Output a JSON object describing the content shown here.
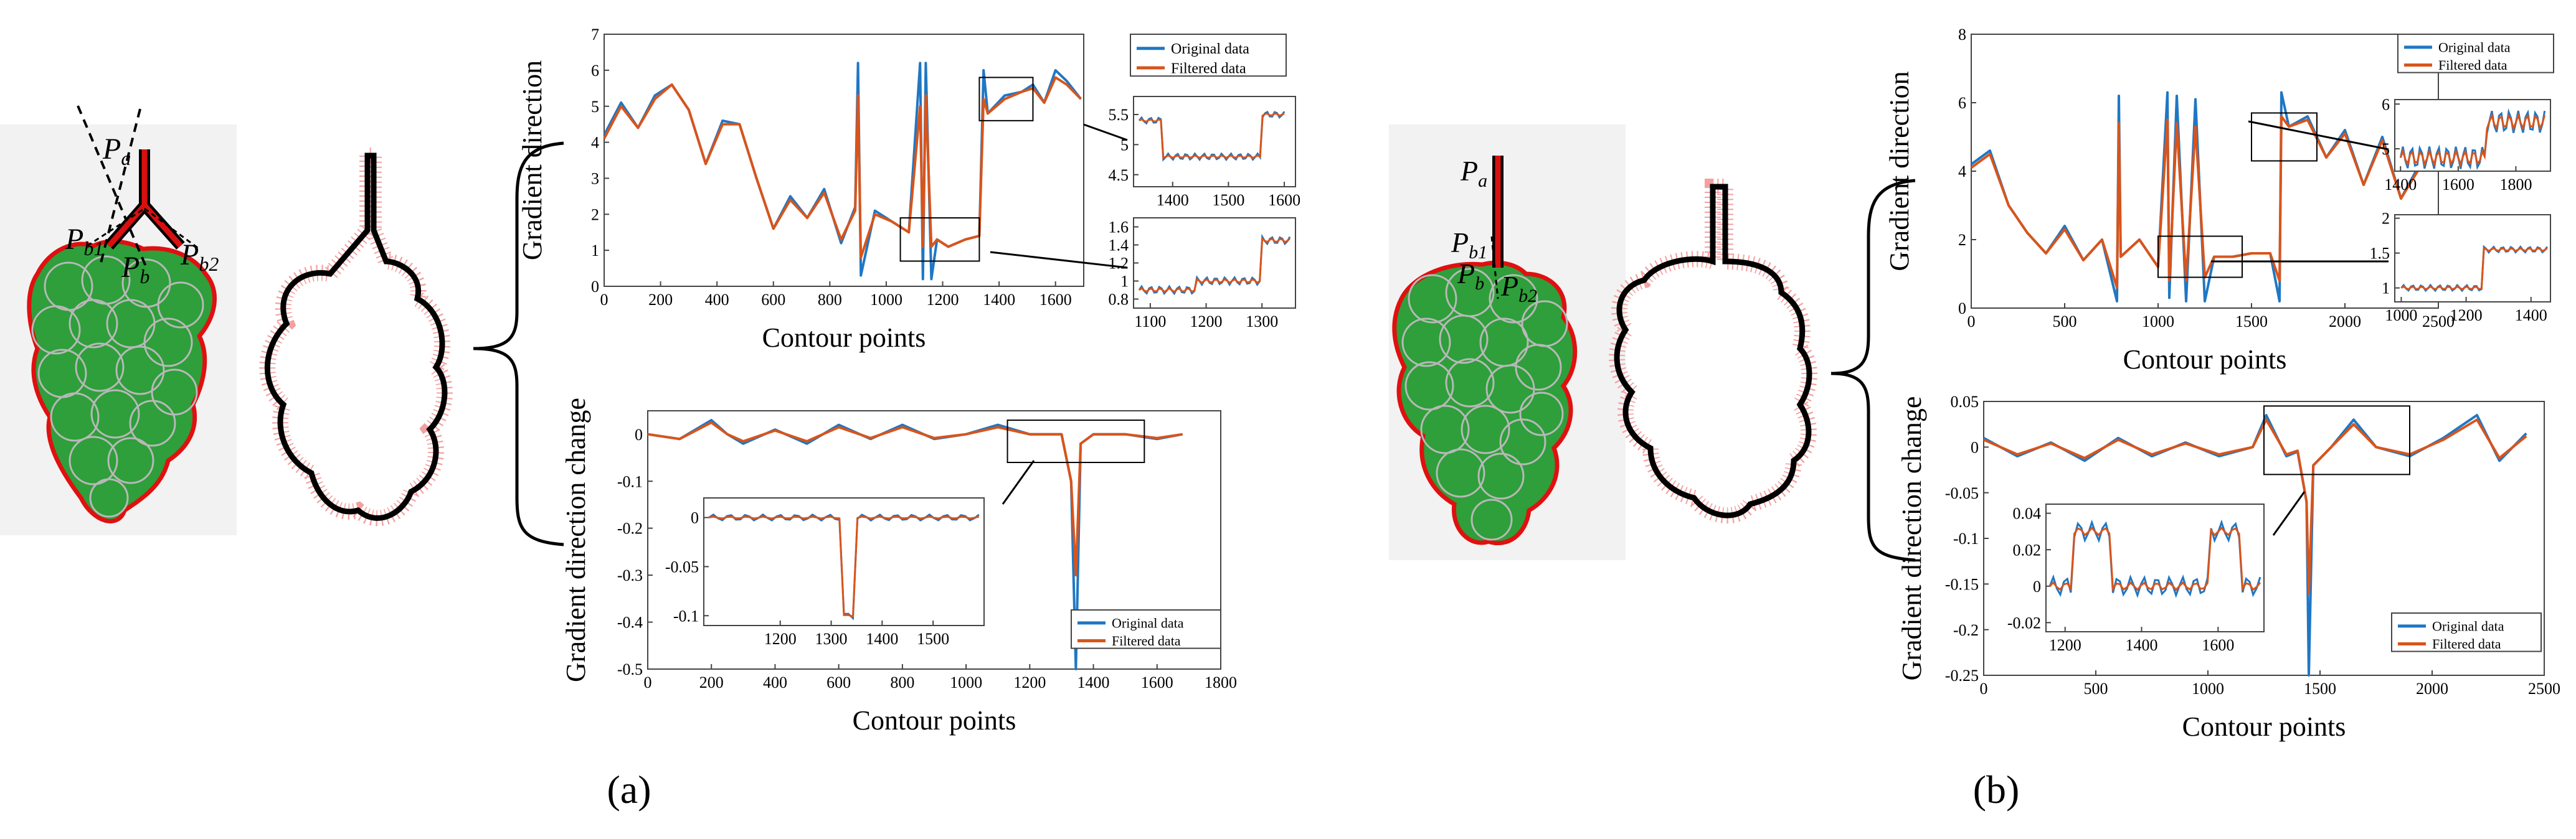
{
  "panels": [
    {
      "id": "a",
      "caption": "(a)",
      "points": {
        "pa": "a",
        "pb1": "b1",
        "pb": "b",
        "pb2": "b2"
      },
      "top_chart": {
        "type": "line",
        "xlabel": "Contour points",
        "ylabel": "Gradient direction",
        "xlim": [
          0,
          1700
        ],
        "ylim": [
          0,
          7
        ],
        "xticks": [
          "0",
          "200",
          "400",
          "600",
          "800",
          "1000",
          "1200",
          "1400",
          "1600"
        ],
        "yticks": [
          "0",
          "1",
          "2",
          "3",
          "4",
          "5",
          "6",
          "7"
        ],
        "legend": [
          "Original data",
          "Filtered data"
        ],
        "inset_upper": {
          "xticks": [
            "1400",
            "1500",
            "1600"
          ],
          "yticks": [
            "5.5",
            "5",
            "4.5"
          ]
        },
        "inset_lower": {
          "xticks": [
            "1100",
            "1200",
            "1300"
          ],
          "yticks": [
            "1.6",
            "1.4",
            "1.2",
            "1",
            "0.8"
          ]
        }
      },
      "bottom_chart": {
        "type": "line",
        "xlabel": "Contour points",
        "ylabel": "Gradient direction change",
        "xlim": [
          0,
          1800
        ],
        "ylim": [
          -0.5,
          0.05
        ],
        "xticks": [
          "0",
          "200",
          "400",
          "600",
          "800",
          "1000",
          "1200",
          "1400",
          "1600",
          "1800"
        ],
        "yticks": [
          "0",
          "-0.1",
          "-0.2",
          "-0.3",
          "-0.4",
          "-0.5"
        ],
        "legend": [
          "Original data",
          "Filtered data"
        ],
        "inset": {
          "xticks": [
            "1200",
            "1300",
            "1400",
            "1500"
          ],
          "yticks": [
            "0",
            "-0.05",
            "-0.1"
          ]
        }
      }
    },
    {
      "id": "b",
      "caption": "(b)",
      "points": {
        "pa": "a",
        "pb1": "b1",
        "pb": "b",
        "pb2": "b2"
      },
      "top_chart": {
        "type": "line",
        "xlabel": "Contour points",
        "ylabel": "Gradient direction",
        "xlim": [
          0,
          2500
        ],
        "ylim": [
          0,
          8
        ],
        "xticks": [
          "0",
          "500",
          "1000",
          "1500",
          "2000",
          "2500"
        ],
        "yticks": [
          "0",
          "2",
          "4",
          "6",
          "8"
        ],
        "legend": [
          "Original data",
          "Filtered data"
        ],
        "inset_upper": {
          "xticks": [
            "1400",
            "1600",
            "1800"
          ],
          "yticks": [
            "6",
            "5"
          ]
        },
        "inset_lower": {
          "xticks": [
            "1000",
            "1200",
            "1400"
          ],
          "yticks": [
            "2",
            "1.5",
            "1"
          ]
        }
      },
      "bottom_chart": {
        "type": "line",
        "xlabel": "Contour points",
        "ylabel": "Gradient direction change",
        "xlim": [
          0,
          2500
        ],
        "ylim": [
          -0.25,
          0.05
        ],
        "xticks": [
          "0",
          "500",
          "1000",
          "1500",
          "2000",
          "2500"
        ],
        "yticks": [
          "0.05",
          "0",
          "-0.05",
          "-0.1",
          "-0.15",
          "-0.2",
          "-0.25"
        ],
        "legend": [
          "Original data",
          "Filtered data"
        ],
        "inset": {
          "xticks": [
            "1200",
            "1400",
            "1600"
          ],
          "yticks": [
            "0.04",
            "0.02",
            "0",
            "-0.02"
          ]
        }
      }
    }
  ],
  "chart_data": [
    {
      "type": "line",
      "title": "",
      "xlabel": "Contour points",
      "ylabel": "Gradient direction",
      "xlim": [
        0,
        1700
      ],
      "ylim": [
        0,
        7
      ],
      "series": [
        {
          "name": "Original data",
          "x": [
            0,
            60,
            120,
            180,
            240,
            300,
            360,
            420,
            480,
            540,
            600,
            660,
            720,
            780,
            840,
            890,
            900,
            910,
            960,
            1020,
            1080,
            1120,
            1130,
            1140,
            1160,
            1180,
            1220,
            1280,
            1330,
            1345,
            1360,
            1420,
            1480,
            1520,
            1560,
            1600,
            1640,
            1690
          ],
          "y": [
            4.2,
            5.1,
            4.4,
            5.3,
            5.6,
            4.9,
            3.4,
            4.6,
            4.5,
            3.0,
            1.6,
            2.5,
            1.9,
            2.7,
            1.2,
            2.2,
            6.2,
            0.3,
            2.1,
            1.8,
            1.5,
            6.2,
            0.2,
            6.2,
            0.2,
            1.3,
            1.1,
            1.3,
            1.4,
            6.0,
            4.8,
            5.3,
            5.4,
            5.6,
            5.1,
            6.0,
            5.7,
            5.2
          ]
        },
        {
          "name": "Filtered data",
          "x": [
            0,
            60,
            120,
            180,
            240,
            300,
            360,
            420,
            480,
            540,
            600,
            660,
            720,
            780,
            840,
            890,
            900,
            910,
            960,
            1020,
            1080,
            1120,
            1130,
            1140,
            1160,
            1180,
            1220,
            1280,
            1330,
            1345,
            1360,
            1420,
            1480,
            1520,
            1560,
            1600,
            1640,
            1690
          ],
          "y": [
            4.1,
            5.0,
            4.4,
            5.2,
            5.6,
            4.9,
            3.4,
            4.5,
            4.5,
            3.0,
            1.6,
            2.4,
            1.9,
            2.6,
            1.3,
            2.1,
            5.3,
            0.8,
            2.0,
            1.8,
            1.5,
            5.0,
            1.1,
            5.3,
            1.1,
            1.3,
            1.1,
            1.3,
            1.4,
            5.2,
            4.8,
            5.2,
            5.4,
            5.5,
            5.1,
            5.8,
            5.6,
            5.2
          ]
        }
      ]
    },
    {
      "type": "line",
      "title": "",
      "xlabel": "Contour points",
      "ylabel": "Gradient direction change",
      "xlim": [
        0,
        1800
      ],
      "ylim": [
        -0.5,
        0.05
      ],
      "series": [
        {
          "name": "Original data",
          "x": [
            0,
            100,
            200,
            250,
            300,
            400,
            500,
            600,
            700,
            800,
            900,
            1000,
            1100,
            1200,
            1300,
            1330,
            1345,
            1360,
            1400,
            1500,
            1600,
            1680
          ],
          "y": [
            0,
            -0.01,
            0.03,
            0.0,
            -0.02,
            0.01,
            -0.02,
            0.02,
            -0.01,
            0.02,
            -0.01,
            0.0,
            0.02,
            0.0,
            0.0,
            -0.1,
            -0.5,
            -0.02,
            0.0,
            0.0,
            -0.01,
            0.0
          ]
        },
        {
          "name": "Filtered data",
          "x": [
            0,
            100,
            200,
            250,
            300,
            400,
            500,
            600,
            700,
            800,
            900,
            1000,
            1100,
            1200,
            1300,
            1330,
            1345,
            1360,
            1400,
            1500,
            1600,
            1680
          ],
          "y": [
            0,
            -0.01,
            0.025,
            0.0,
            -0.015,
            0.008,
            -0.015,
            0.015,
            -0.008,
            0.015,
            -0.008,
            0.0,
            0.015,
            0.0,
            0.0,
            -0.1,
            -0.3,
            -0.02,
            0.0,
            0.0,
            -0.008,
            0.0
          ]
        }
      ]
    },
    {
      "type": "line",
      "title": "",
      "xlabel": "Contour points",
      "ylabel": "Gradient direction",
      "xlim": [
        0,
        2500
      ],
      "ylim": [
        0,
        8
      ],
      "series": [
        {
          "name": "Original data",
          "x": [
            0,
            100,
            200,
            300,
            400,
            500,
            600,
            700,
            780,
            790,
            800,
            900,
            1000,
            1050,
            1060,
            1100,
            1150,
            1200,
            1250,
            1300,
            1400,
            1500,
            1600,
            1650,
            1660,
            1700,
            1800,
            1900,
            2000,
            2100,
            2200,
            2300,
            2400
          ],
          "y": [
            4.2,
            4.6,
            3.0,
            2.2,
            1.6,
            2.4,
            1.4,
            2.0,
            0.2,
            6.2,
            1.5,
            2.0,
            1.2,
            6.3,
            0.3,
            6.2,
            0.2,
            6.1,
            0.2,
            1.5,
            1.5,
            1.6,
            1.6,
            0.2,
            6.3,
            5.3,
            5.6,
            4.4,
            5.2,
            3.6,
            5.0,
            3.2,
            4.2
          ]
        },
        {
          "name": "Filtered data",
          "x": [
            0,
            100,
            200,
            300,
            400,
            500,
            600,
            700,
            780,
            790,
            800,
            900,
            1000,
            1050,
            1060,
            1100,
            1150,
            1200,
            1250,
            1300,
            1400,
            1500,
            1600,
            1650,
            1660,
            1700,
            1800,
            1900,
            2000,
            2100,
            2200,
            2300,
            2400
          ],
          "y": [
            4.1,
            4.5,
            3.0,
            2.2,
            1.6,
            2.3,
            1.4,
            2.0,
            0.6,
            5.4,
            1.5,
            2.0,
            1.2,
            5.5,
            0.8,
            5.4,
            0.8,
            5.3,
            0.9,
            1.5,
            1.5,
            1.6,
            1.6,
            0.8,
            5.6,
            5.3,
            5.5,
            4.4,
            5.1,
            3.6,
            4.9,
            3.2,
            4.1
          ]
        }
      ]
    },
    {
      "type": "line",
      "title": "",
      "xlabel": "Contour points",
      "ylabel": "Gradient direction change",
      "xlim": [
        0,
        2500
      ],
      "ylim": [
        -0.25,
        0.05
      ],
      "series": [
        {
          "name": "Original data",
          "x": [
            0,
            150,
            300,
            450,
            600,
            750,
            900,
            1050,
            1200,
            1260,
            1350,
            1400,
            1440,
            1450,
            1470,
            1550,
            1650,
            1750,
            1900,
            2050,
            2200,
            2300,
            2420
          ],
          "y": [
            0.01,
            -0.01,
            0.005,
            -0.015,
            0.01,
            -0.01,
            0.005,
            -0.01,
            0.0,
            0.035,
            -0.01,
            -0.005,
            -0.06,
            -0.25,
            -0.02,
            0.0,
            0.03,
            0.0,
            -0.01,
            0.01,
            0.035,
            -0.015,
            0.015
          ]
        },
        {
          "name": "Filtered data",
          "x": [
            0,
            150,
            300,
            450,
            600,
            750,
            900,
            1050,
            1200,
            1260,
            1350,
            1400,
            1440,
            1450,
            1470,
            1550,
            1650,
            1750,
            1900,
            2050,
            2200,
            2300,
            2420
          ],
          "y": [
            0.008,
            -0.008,
            0.004,
            -0.012,
            0.008,
            -0.008,
            0.004,
            -0.008,
            0.0,
            0.03,
            -0.008,
            -0.004,
            -0.06,
            -0.16,
            -0.02,
            0.0,
            0.025,
            0.0,
            -0.008,
            0.008,
            0.03,
            -0.012,
            0.012
          ]
        }
      ]
    }
  ]
}
